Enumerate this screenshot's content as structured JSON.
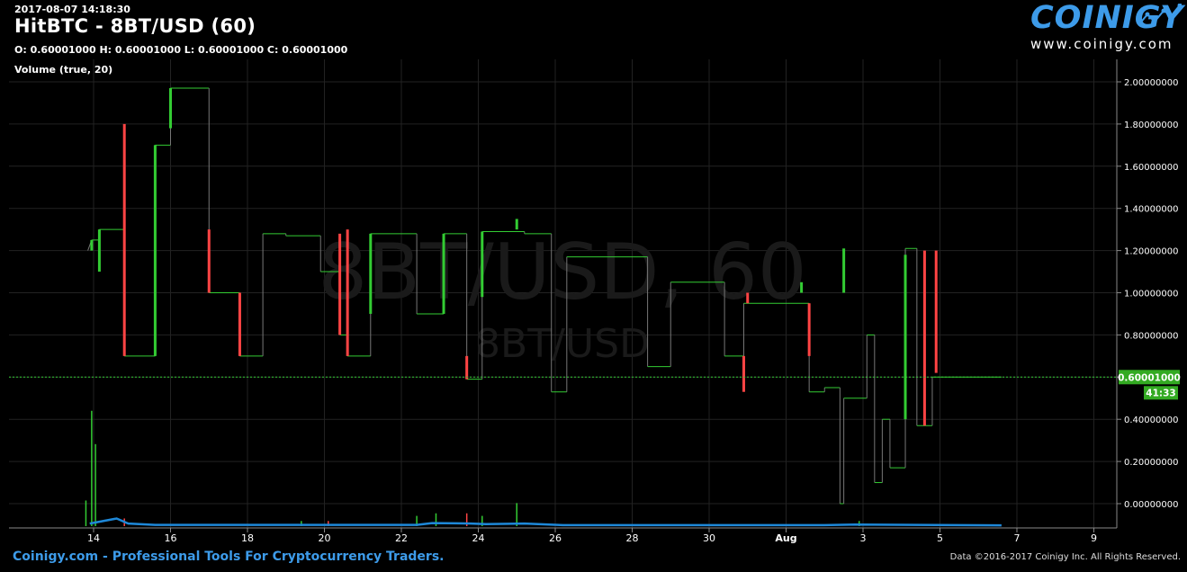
{
  "header": {
    "timestamp": "2017-08-07 14:18:30",
    "title": "HitBTC - 8BT/USD (60)",
    "ohlc": "O: 0.60001000 H: 0.60001000 L: 0.60001000 C: 0.60001000",
    "volume_label": "Volume (true, 20)"
  },
  "logo": {
    "word": "COINIGY",
    "url": "www.coinigy.com"
  },
  "watermark": {
    "main": "8BT/USD, 60",
    "sub": "8BT/USD"
  },
  "price_tag": {
    "value": "0.60001000",
    "countdown": "41:33"
  },
  "footer": {
    "left": "Coinigy.com - Professional Tools For Cryptocurrency Traders.",
    "right": "Data ©2016-2017 Coinigy Inc. All Rights Reserved."
  },
  "colors": {
    "up": "#33cc33",
    "down": "#ff4444",
    "volume": "#1e88d8",
    "accent": "#3d9be9",
    "tag": "#33aa22"
  },
  "chart_data": {
    "type": "candlestick",
    "y_ticks": [
      "2.00000000",
      "1.80000000",
      "1.60000000",
      "1.40000000",
      "1.20000000",
      "1.00000000",
      "0.80000000",
      "0.60000000",
      "0.40000000",
      "0.20000000",
      "0.00000000"
    ],
    "y_range": [
      -0.1,
      2.1
    ],
    "x_range": [
      13.1,
      40.8
    ],
    "x_ticks": [
      {
        "day": 14,
        "label": "14"
      },
      {
        "day": 16,
        "label": "16"
      },
      {
        "day": 18,
        "label": "18"
      },
      {
        "day": 20,
        "label": "20"
      },
      {
        "day": 22,
        "label": "22"
      },
      {
        "day": 24,
        "label": "24"
      },
      {
        "day": 26,
        "label": "26"
      },
      {
        "day": 28,
        "label": "28"
      },
      {
        "day": 30,
        "label": "30"
      },
      {
        "day": 32,
        "label": "Aug"
      },
      {
        "day": 34,
        "label": "3"
      },
      {
        "day": 36,
        "label": "5"
      },
      {
        "day": 38,
        "label": "7"
      },
      {
        "day": 40,
        "label": "9"
      }
    ],
    "last_price": 0.60001,
    "price_path": [
      [
        13.85,
        1.2
      ],
      [
        13.95,
        1.25
      ],
      [
        14.15,
        1.25
      ],
      [
        14.15,
        1.3
      ],
      [
        14.8,
        1.3
      ],
      [
        14.8,
        0.7
      ],
      [
        15.6,
        0.7
      ],
      [
        15.6,
        1.7
      ],
      [
        16.0,
        1.7
      ],
      [
        16.0,
        1.97
      ],
      [
        17.0,
        1.97
      ],
      [
        17.0,
        1.0
      ],
      [
        17.8,
        1.0
      ],
      [
        17.8,
        0.7
      ],
      [
        18.4,
        0.7
      ],
      [
        18.4,
        1.28
      ],
      [
        19.0,
        1.28
      ],
      [
        19.0,
        1.27
      ],
      [
        19.9,
        1.27
      ],
      [
        19.9,
        1.1
      ],
      [
        20.4,
        1.1
      ],
      [
        20.4,
        0.8
      ],
      [
        20.6,
        0.8
      ],
      [
        20.6,
        0.7
      ],
      [
        21.2,
        0.7
      ],
      [
        21.2,
        1.28
      ],
      [
        22.4,
        1.28
      ],
      [
        22.4,
        0.9
      ],
      [
        23.1,
        0.9
      ],
      [
        23.1,
        1.28
      ],
      [
        23.7,
        1.28
      ],
      [
        23.7,
        0.59
      ],
      [
        24.1,
        0.59
      ],
      [
        24.1,
        1.29
      ],
      [
        25.2,
        1.29
      ],
      [
        25.2,
        1.28
      ],
      [
        25.9,
        1.28
      ],
      [
        25.9,
        0.53
      ],
      [
        26.3,
        0.53
      ],
      [
        26.3,
        1.17
      ],
      [
        28.4,
        1.17
      ],
      [
        28.4,
        0.65
      ],
      [
        29.0,
        0.65
      ],
      [
        29.0,
        1.05
      ],
      [
        30.4,
        1.05
      ],
      [
        30.4,
        0.7
      ],
      [
        30.9,
        0.7
      ],
      [
        30.9,
        0.95
      ],
      [
        32.6,
        0.95
      ],
      [
        32.6,
        0.53
      ],
      [
        33.0,
        0.53
      ],
      [
        33.0,
        0.55
      ],
      [
        33.4,
        0.55
      ],
      [
        33.4,
        0.0
      ],
      [
        33.5,
        0.0
      ],
      [
        33.5,
        0.5
      ],
      [
        34.1,
        0.5
      ],
      [
        34.1,
        0.8
      ],
      [
        34.3,
        0.8
      ],
      [
        34.3,
        0.1
      ],
      [
        34.5,
        0.1
      ],
      [
        34.5,
        0.4
      ],
      [
        34.7,
        0.4
      ],
      [
        34.7,
        0.17
      ],
      [
        35.1,
        0.17
      ],
      [
        35.1,
        1.21
      ],
      [
        35.4,
        1.21
      ],
      [
        35.4,
        0.37
      ],
      [
        35.8,
        0.37
      ],
      [
        35.8,
        0.6
      ],
      [
        37.6,
        0.6
      ]
    ],
    "candles": [
      {
        "day": 13.95,
        "open": 1.2,
        "close": 1.25
      },
      {
        "day": 14.15,
        "open": 1.1,
        "close": 1.3
      },
      {
        "day": 14.8,
        "open": 1.8,
        "close": 0.7
      },
      {
        "day": 15.6,
        "open": 0.7,
        "close": 1.7
      },
      {
        "day": 16.0,
        "open": 1.78,
        "close": 1.97
      },
      {
        "day": 17.0,
        "open": 1.3,
        "close": 1.0
      },
      {
        "day": 17.8,
        "open": 1.0,
        "close": 0.7
      },
      {
        "day": 20.4,
        "open": 1.28,
        "close": 0.8
      },
      {
        "day": 20.6,
        "open": 1.3,
        "close": 0.7
      },
      {
        "day": 21.2,
        "open": 0.9,
        "close": 1.28
      },
      {
        "day": 23.1,
        "open": 0.9,
        "close": 1.28
      },
      {
        "day": 23.7,
        "open": 0.7,
        "close": 0.59
      },
      {
        "day": 24.1,
        "open": 0.98,
        "close": 1.29
      },
      {
        "day": 25.0,
        "open": 1.3,
        "close": 1.35
      },
      {
        "day": 30.9,
        "open": 0.7,
        "close": 0.53
      },
      {
        "day": 31.0,
        "open": 1.0,
        "close": 0.95
      },
      {
        "day": 32.4,
        "open": 1.0,
        "close": 1.05
      },
      {
        "day": 32.6,
        "open": 0.95,
        "close": 0.7
      },
      {
        "day": 33.5,
        "open": 1.0,
        "close": 1.21
      },
      {
        "day": 35.1,
        "open": 0.4,
        "close": 1.18
      },
      {
        "day": 35.6,
        "open": 1.2,
        "close": 0.37
      },
      {
        "day": 35.9,
        "open": 1.2,
        "close": 0.62
      }
    ],
    "volume": [
      {
        "day": 13.8,
        "value": 0.1,
        "dir": "up"
      },
      {
        "day": 13.95,
        "value": 0.45,
        "dir": "up"
      },
      {
        "day": 14.05,
        "value": 0.32,
        "dir": "up"
      },
      {
        "day": 14.8,
        "value": 0.03,
        "dir": "down"
      },
      {
        "day": 19.4,
        "value": 0.02,
        "dir": "up"
      },
      {
        "day": 20.1,
        "value": 0.02,
        "dir": "down"
      },
      {
        "day": 22.4,
        "value": 0.04,
        "dir": "up"
      },
      {
        "day": 22.9,
        "value": 0.05,
        "dir": "up"
      },
      {
        "day": 23.7,
        "value": 0.05,
        "dir": "down"
      },
      {
        "day": 24.1,
        "value": 0.04,
        "dir": "up"
      },
      {
        "day": 25.0,
        "value": 0.09,
        "dir": "up"
      },
      {
        "day": 33.9,
        "value": 0.02,
        "dir": "up"
      }
    ],
    "volume_ma": [
      [
        13.9,
        0.01
      ],
      [
        14.6,
        0.03
      ],
      [
        14.9,
        0.01
      ],
      [
        15.6,
        0.005
      ],
      [
        22.4,
        0.005
      ],
      [
        22.8,
        0.012
      ],
      [
        23.8,
        0.01
      ],
      [
        24.2,
        0.008
      ],
      [
        25.2,
        0.01
      ],
      [
        26.2,
        0.004
      ],
      [
        33.0,
        0.004
      ],
      [
        33.8,
        0.006
      ],
      [
        37.6,
        0.003
      ]
    ]
  }
}
